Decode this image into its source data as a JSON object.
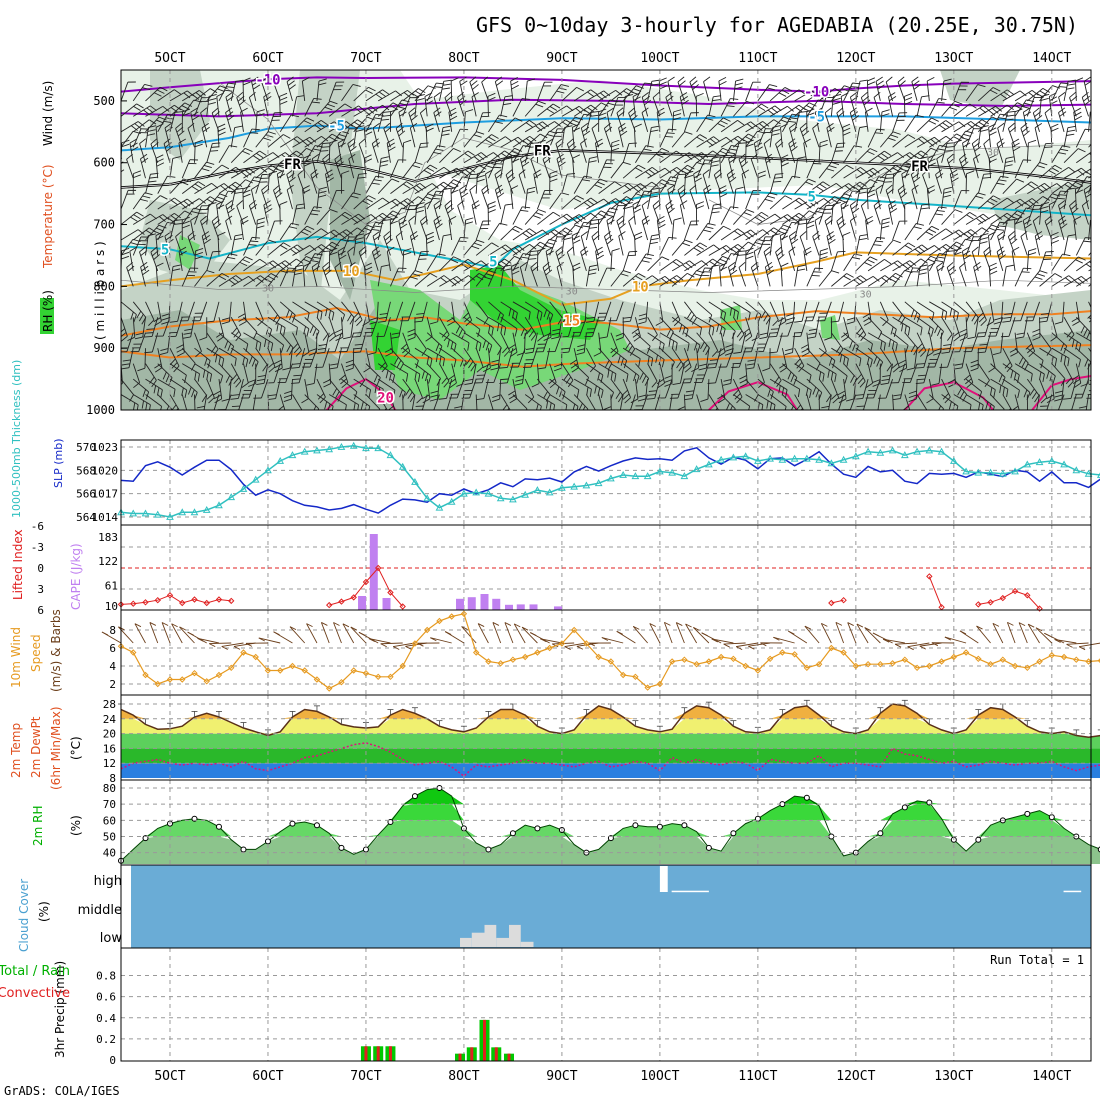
{
  "title": "GFS 0~10day 3-hourly for AGEDABIA (20.25E, 30.75N)",
  "credit": "GrADS: COLA/IGES",
  "colors": {
    "rh_band_1": "#e8f2e8",
    "rh_band_2": "#c4d3c6",
    "rh_band_3": "#a2b7a6",
    "rh_band_4": "#78d878",
    "rh_band_5": "#33d333",
    "temp_m10": "#8800bb",
    "temp_m5": "#1e9ee0",
    "temp_5": "#14b4c8",
    "temp_10": "#e6a020",
    "temp_15": "#f08020",
    "temp_20": "#e0107a",
    "freezing": "#000000",
    "slp_line": "#1428c8",
    "thickness_line": "#30c0c0",
    "lifted_line": "#e02020",
    "cape_bar": "#c080f0",
    "wind_line": "#e69a20",
    "barb": "#6b3e1a",
    "cloud_bg": "#6aacd6",
    "cloud_fill": "#dcdcdc",
    "precip_total": "#00c800",
    "precip_conv": "#e02020"
  },
  "x_axis": {
    "top_ticks": [
      "5OCT",
      "6OCT",
      "7OCT",
      "8OCT",
      "9OCT",
      "10OCT",
      "11OCT",
      "12OCT",
      "13OCT",
      "14OCT"
    ],
    "bottom_ticks": [
      "5OCT",
      "6OCT",
      "7OCT",
      "8OCT",
      "9OCT",
      "10OCT",
      "11OCT",
      "12OCT",
      "13OCT",
      "14OCT"
    ]
  },
  "chart_data": [
    {
      "id": "upper_air",
      "type": "contour",
      "ylabel_parts": [
        "RH (%)",
        "Temperature (°C)",
        "Wind (m/s)"
      ],
      "ylabel_millibars": "( m i l l i b a r s )",
      "yticks": [
        "500",
        "600",
        "700",
        "800",
        "900",
        "1000"
      ],
      "ylim": [
        1000,
        450
      ],
      "contour_labels": [
        {
          "text": "-10",
          "day": 6.0,
          "p": 465,
          "color_key": "temp_m10"
        },
        {
          "text": "-10",
          "day": 11.6,
          "p": 485,
          "color_key": "temp_m10"
        },
        {
          "text": "-5",
          "day": 6.7,
          "p": 540,
          "color_key": "temp_m5"
        },
        {
          "text": "-5",
          "day": 11.6,
          "p": 525,
          "color_key": "temp_m5"
        },
        {
          "text": "FR",
          "day": 6.25,
          "p": 602,
          "color_key": "freezing"
        },
        {
          "text": "FR",
          "day": 8.8,
          "p": 580,
          "color_key": "freezing"
        },
        {
          "text": "FR",
          "day": 12.65,
          "p": 605,
          "color_key": "freezing"
        },
        {
          "text": "5",
          "day": 4.95,
          "p": 740,
          "color_key": "temp_5"
        },
        {
          "text": "5",
          "day": 8.3,
          "p": 760,
          "color_key": "temp_5"
        },
        {
          "text": "5",
          "day": 11.55,
          "p": 655,
          "color_key": "temp_5"
        },
        {
          "text": "10",
          "day": 6.85,
          "p": 775,
          "color_key": "temp_10"
        },
        {
          "text": "10",
          "day": 9.8,
          "p": 800,
          "color_key": "temp_10"
        },
        {
          "text": "15",
          "day": 9.1,
          "p": 855,
          "color_key": "temp_15"
        },
        {
          "text": "20",
          "day": 7.2,
          "p": 980,
          "color_key": "temp_20"
        },
        {
          "text": "30",
          "day": 6.0,
          "p": 800,
          "color_key": "freezing"
        },
        {
          "text": "30",
          "day": 9.1,
          "p": 805,
          "color_key": "freezing"
        },
        {
          "text": "30",
          "day": 12.1,
          "p": 810,
          "color_key": "freezing"
        },
        {
          "text": "30",
          "day": 13.4,
          "p": 580,
          "color_key": "freezing"
        }
      ]
    },
    {
      "id": "slp_thickness",
      "type": "line",
      "ylabel_left": "1000-500mb Thickness (dm)",
      "ylabel_right": "SLP (mb)",
      "yticks_left": [
        "570",
        "568",
        "566",
        "564"
      ],
      "yticks_right": [
        "1023",
        "1020",
        "1017",
        "1014"
      ],
      "series": [
        {
          "name": "SLP (mb)",
          "color_key": "slp_line",
          "values": [
            1018.7,
            1018.6,
            1020.6,
            1021.1,
            1020.4,
            1019.4,
            1020.4,
            1021.3,
            1021.3,
            1020.1,
            1018.2,
            1016.8,
            1017.5,
            1017.0,
            1016.1,
            1015.5,
            1015.3,
            1014.9,
            1015.1,
            1015.6,
            1015.0,
            1014.5,
            1015.5,
            1016.3,
            1016.2,
            1015.9,
            1017.0,
            1016.8,
            1017.6,
            1017.0,
            1017.5,
            1018.4,
            1017.9,
            1018.9,
            1018.8,
            1019.0,
            1018.5,
            1019.8,
            1020.5,
            1019.9,
            1020.6,
            1021.2,
            1021.6,
            1021.4,
            1021.5,
            1021.3,
            1022.5,
            1022.9,
            1021.6,
            1020.8,
            1021.7,
            1021.3,
            1020.2,
            1021.5,
            1021.6,
            1020.6,
            1021.4,
            1022.4,
            1020.8,
            1019.5,
            1019.1,
            1020.5,
            1019.8,
            1020.0,
            1018.6,
            1018.3,
            1019.6,
            1019.5,
            1019.6,
            1019.1,
            1019.8,
            1019.5,
            1019.2,
            1020.0,
            1019.8,
            1018.6,
            1019.8,
            1018.4,
            1018.4,
            1017.8,
            1018.9
          ]
        },
        {
          "name": "1000-500mb Thickness (dm)",
          "color_key": "thickness_line",
          "values": [
            564.4,
            564.3,
            564.3,
            564.2,
            564.0,
            564.4,
            564.4,
            564.6,
            565.0,
            565.7,
            566.4,
            567.2,
            568.0,
            568.8,
            569.3,
            569.6,
            569.7,
            569.8,
            570.0,
            570.1,
            569.9,
            569.9,
            569.3,
            568.3,
            567.0,
            565.6,
            564.8,
            565.3,
            566.0,
            566.1,
            566.0,
            565.6,
            565.5,
            565.9,
            566.3,
            566.1,
            566.5,
            566.6,
            566.7,
            566.9,
            567.3,
            567.6,
            567.5,
            567.5,
            567.9,
            567.8,
            567.5,
            568.1,
            568.5,
            568.9,
            569.1,
            569.2,
            568.8,
            569.0,
            568.9,
            569.0,
            569.0,
            568.9,
            568.6,
            568.9,
            569.2,
            569.6,
            569.5,
            569.7,
            569.3,
            569.6,
            569.7,
            569.6,
            568.8,
            567.9,
            567.8,
            567.8,
            567.7,
            567.9,
            568.5,
            568.7,
            568.8,
            568.5,
            568.0,
            567.7,
            567.6
          ]
        }
      ]
    },
    {
      "id": "lifted_cape",
      "type": "bar",
      "ylabel_left": "Lifted Index",
      "ylabel_right": "CAPE (J/kg)",
      "yticks_left": [
        "-6",
        "-3",
        "0",
        "3",
        "6"
      ],
      "yticks_right": [
        "183",
        "122",
        "61",
        "10"
      ],
      "lifted_index_points": [
        {
          "day": 4.5,
          "value": 5.2
        },
        {
          "day": 4.625,
          "value": 5.1
        },
        {
          "day": 4.75,
          "value": 4.9
        },
        {
          "day": 4.875,
          "value": 4.6
        },
        {
          "day": 5.0,
          "value": 3.9
        },
        {
          "day": 5.125,
          "value": 5.0
        },
        {
          "day": 5.25,
          "value": 4.5
        },
        {
          "day": 5.375,
          "value": 5.0
        },
        {
          "day": 5.5,
          "value": 4.5
        },
        {
          "day": 5.625,
          "value": 4.7
        },
        {
          "day": 6.625,
          "value": 5.3
        },
        {
          "day": 6.75,
          "value": 4.8
        },
        {
          "day": 6.875,
          "value": 4.2
        },
        {
          "day": 7.0,
          "value": 2.0
        },
        {
          "day": 7.125,
          "value": 0.0
        },
        {
          "day": 7.25,
          "value": 3.5
        },
        {
          "day": 7.375,
          "value": 5.5
        },
        {
          "day": 11.75,
          "value": 5.0
        },
        {
          "day": 11.875,
          "value": 4.6
        },
        {
          "day": 12.75,
          "value": 1.2
        },
        {
          "day": 12.875,
          "value": 5.6
        },
        {
          "day": 13.25,
          "value": 5.2
        },
        {
          "day": 13.375,
          "value": 4.9
        },
        {
          "day": 13.5,
          "value": 4.3
        },
        {
          "day": 13.625,
          "value": 3.3
        },
        {
          "day": 13.75,
          "value": 3.9
        },
        {
          "day": 13.875,
          "value": 5.8
        }
      ],
      "cape_bars": [
        {
          "day": 6.96,
          "value": 35
        },
        {
          "day": 7.08,
          "value": 190
        },
        {
          "day": 7.21,
          "value": 30
        },
        {
          "day": 7.96,
          "value": 28
        },
        {
          "day": 8.08,
          "value": 32
        },
        {
          "day": 8.21,
          "value": 40
        },
        {
          "day": 8.33,
          "value": 28
        },
        {
          "day": 8.46,
          "value": 13
        },
        {
          "day": 8.58,
          "value": 14
        },
        {
          "day": 8.71,
          "value": 14
        },
        {
          "day": 8.96,
          "value": 9
        }
      ]
    },
    {
      "id": "wind10m",
      "type": "line",
      "ylabel_parts": [
        "10m Wind",
        "Speed",
        "(m/s) & Barbs"
      ],
      "yticks": [
        "8",
        "6",
        "4",
        "2"
      ],
      "series": [
        {
          "name": "10m Wind Speed (m/s)",
          "color_key": "wind_line",
          "values": [
            6.2,
            5.5,
            3.0,
            2.0,
            2.5,
            2.5,
            3.2,
            2.3,
            3.0,
            3.8,
            5.5,
            5.0,
            3.5,
            3.5,
            4.0,
            3.5,
            2.5,
            1.5,
            2.2,
            3.5,
            3.2,
            2.8,
            2.8,
            4.0,
            6.5,
            8.0,
            9.0,
            9.5,
            9.8,
            5.5,
            4.5,
            4.3,
            4.7,
            5.0,
            5.5,
            6.0,
            6.5,
            8.0,
            6.5,
            5.0,
            4.5,
            3.0,
            2.8,
            1.6,
            2.0,
            4.5,
            4.7,
            4.2,
            4.5,
            5.0,
            4.8,
            4.0,
            3.5,
            4.8,
            5.5,
            5.3,
            3.8,
            4.2,
            6.0,
            5.5,
            4.0,
            4.2,
            4.2,
            4.3,
            4.7,
            3.8,
            4.0,
            4.5,
            5.0,
            5.5,
            4.8,
            4.2,
            4.7,
            4.0,
            3.8,
            4.5,
            5.2,
            5.0,
            4.7,
            4.5,
            4.6
          ]
        }
      ]
    },
    {
      "id": "temp2m",
      "type": "area",
      "ylabel_parts": [
        "2m Temp",
        "2m DewPt",
        "(6hr Min/Max)",
        "(°C)"
      ],
      "yticks": [
        "28",
        "24",
        "20",
        "16",
        "12",
        "8"
      ],
      "series": [
        {
          "name": "2m Temp (°C)",
          "color_key": "temp_15",
          "values": [
            26.5,
            25.0,
            22.5,
            21.2,
            21.3,
            22.0,
            24.5,
            25.5,
            24.5,
            23.0,
            21.5,
            20.5,
            19.5,
            20.5,
            24.5,
            26.5,
            26.0,
            24.5,
            22.5,
            21.8,
            21.5,
            21.8,
            25.0,
            26.5,
            25.5,
            24.0,
            22.0,
            21.0,
            20.5,
            21.5,
            24.5,
            26.5,
            26.5,
            25.0,
            22.0,
            20.5,
            20.0,
            21.0,
            25.0,
            27.5,
            26.5,
            24.5,
            22.0,
            21.0,
            20.5,
            21.2,
            25.5,
            27.5,
            27.0,
            25.0,
            22.0,
            20.5,
            20.2,
            21.0,
            25.0,
            27.0,
            27.5,
            25.0,
            22.0,
            20.5,
            20.0,
            21.0,
            25.5,
            28.0,
            27.5,
            25.5,
            22.5,
            21.0,
            20.0,
            21.0,
            25.0,
            27.0,
            26.5,
            24.5,
            22.0,
            20.5,
            20.0,
            20.5,
            19.5,
            19.0,
            19.5
          ]
        },
        {
          "name": "2m DewPt (°C)",
          "color_key": "temp_20",
          "values": [
            10.5,
            12.0,
            12.5,
            13.0,
            12.0,
            11.5,
            12.0,
            11.5,
            12.0,
            11.0,
            12.5,
            10.5,
            10.0,
            11.0,
            12.0,
            13.5,
            14.0,
            15.0,
            16.0,
            17.0,
            17.5,
            16.5,
            15.0,
            13.0,
            11.5,
            12.0,
            12.5,
            11.0,
            8.5,
            11.5,
            11.0,
            11.5,
            12.0,
            13.0,
            12.0,
            12.0,
            11.5,
            11.0,
            12.0,
            12.5,
            11.0,
            11.5,
            12.5,
            12.0,
            10.0,
            13.5,
            12.0,
            13.0,
            12.0,
            11.5,
            12.5,
            12.0,
            10.0,
            13.0,
            12.5,
            12.0,
            12.0,
            14.0,
            11.0,
            12.0,
            12.0,
            11.5,
            11.0,
            16.0,
            14.5,
            14.0,
            13.0,
            12.0,
            12.5,
            11.0,
            11.5,
            12.5,
            12.0,
            11.5,
            12.0,
            12.0,
            12.5,
            11.0,
            10.0,
            11.0,
            11.5
          ]
        }
      ]
    },
    {
      "id": "rh2m",
      "type": "area",
      "ylabel_parts": [
        "2m RH",
        "(%)"
      ],
      "yticks": [
        "80",
        "70",
        "60",
        "50",
        "40"
      ],
      "series": [
        {
          "name": "2m RH (%)",
          "color_key": "precip_total",
          "values": [
            35,
            42,
            49,
            55,
            58,
            60,
            61,
            60,
            56,
            48,
            42,
            42,
            47,
            53,
            58,
            59,
            57,
            52,
            43,
            39,
            42,
            51,
            59,
            69,
            75,
            79,
            80,
            75,
            55,
            46,
            42,
            45,
            52,
            57,
            55,
            57,
            54,
            45,
            40,
            42,
            49,
            55,
            57,
            56,
            56,
            58,
            57,
            53,
            43,
            41,
            52,
            58,
            61,
            66,
            70,
            75,
            74,
            69,
            50,
            38,
            40,
            47,
            52,
            64,
            68,
            72,
            71,
            61,
            48,
            41,
            48,
            57,
            60,
            62,
            64,
            66,
            62,
            55,
            50,
            45,
            42
          ]
        }
      ]
    },
    {
      "id": "cloud_cover",
      "type": "bar",
      "ylabel_parts": [
        "Cloud Cover",
        "(%)"
      ],
      "yticks": [
        "high",
        "middle",
        "low"
      ],
      "blocks": [
        {
          "level": "high",
          "start_day": 10.0,
          "end_day": 10.08,
          "fraction": 1.0
        },
        {
          "level": "high",
          "start_day": 10.12,
          "end_day": 10.5,
          "fraction": 0.05
        },
        {
          "level": "high",
          "start_day": 14.12,
          "end_day": 14.3,
          "fraction": 0.05
        },
        {
          "level": "low",
          "start_day": 7.96,
          "end_day": 8.08,
          "fraction": 0.35
        },
        {
          "level": "low",
          "start_day": 8.08,
          "end_day": 8.21,
          "fraction": 0.55
        },
        {
          "level": "low",
          "start_day": 8.21,
          "end_day": 8.33,
          "fraction": 0.85
        },
        {
          "level": "low",
          "start_day": 8.33,
          "end_day": 8.46,
          "fraction": 0.35
        },
        {
          "level": "low",
          "start_day": 8.46,
          "end_day": 8.58,
          "fraction": 0.85
        },
        {
          "level": "low",
          "start_day": 8.58,
          "end_day": 8.71,
          "fraction": 0.2
        }
      ]
    },
    {
      "id": "precip",
      "type": "bar",
      "ylabel_parts": [
        "3hr Precip (mm)",
        "Total / Rain",
        "Convective"
      ],
      "annotation": "Run Total = 1",
      "yticks": [
        "0.8",
        "0.6",
        "0.4",
        "0.2",
        "0"
      ],
      "ylim": [
        0,
        1.0
      ],
      "bars": [
        {
          "day": 7.0,
          "total": 0.13,
          "conv": 0.13
        },
        {
          "day": 7.125,
          "total": 0.13,
          "conv": 0.13
        },
        {
          "day": 7.25,
          "total": 0.13,
          "conv": 0.13
        },
        {
          "day": 7.96,
          "total": 0.06,
          "conv": 0.06
        },
        {
          "day": 8.08,
          "total": 0.12,
          "conv": 0.12
        },
        {
          "day": 8.21,
          "total": 0.38,
          "conv": 0.38
        },
        {
          "day": 8.33,
          "total": 0.12,
          "conv": 0.12
        },
        {
          "day": 8.46,
          "total": 0.06,
          "conv": 0.06
        }
      ]
    }
  ]
}
